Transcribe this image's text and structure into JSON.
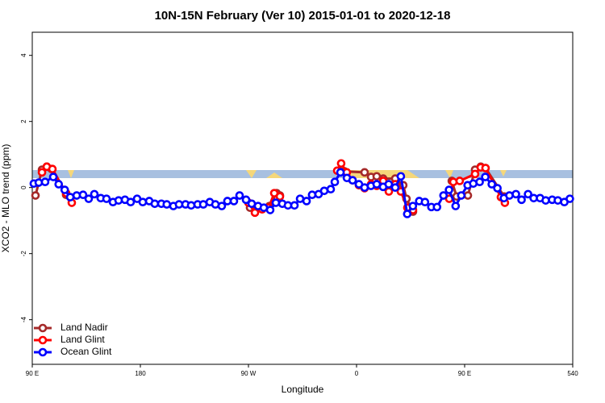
{
  "chart_data": {
    "type": "line",
    "title": "10N-15N February (Ver 10)   2015-01-01 to 2020-12-18",
    "x_label": "Longitude",
    "y_label": "XCO2 - MLO trend (ppm)",
    "xlim": [
      90,
      540
    ],
    "xticks": [
      {
        "value": 90,
        "label": "90 E"
      },
      180,
      {
        "value": 270,
        "label": "90 W"
      },
      {
        "value": 360,
        "label": "0"
      },
      {
        "value": 450,
        "label": "90 E"
      },
      540
    ],
    "ylim": [
      -5.35,
      4.7
    ],
    "yticks": [
      -4,
      -2,
      0,
      2,
      4
    ],
    "legend": "bottom-left",
    "series": [
      {
        "name": "Land Nadir",
        "color": "#a52a2a",
        "x": [
          92.7,
          98.1,
          102.1,
          106.1,
          118.2,
          null,
          271.3,
          287.4,
          293.5,
          296.2,
          null,
          345.2,
          349.9,
          366.7,
          372.1,
          376.8,
          382.2,
          392.2,
          398.9,
          401.6,
          407,
          null,
          439.3,
          443.3,
          452.7,
          458.7,
          463.4,
          467.4,
          482.9
        ],
        "values": [
          -0.24,
          0.54,
          0.63,
          0.56,
          -0.22,
          null,
          -0.61,
          -0.56,
          -0.17,
          -0.24,
          null,
          0.51,
          0.49,
          0.46,
          0.32,
          0.34,
          0.27,
          0.27,
          0.07,
          -0.34,
          -0.73,
          null,
          0.2,
          -0.27,
          -0.24,
          0.54,
          0.63,
          0.59,
          -0.27
        ]
      },
      {
        "name": "Land Glint",
        "color": "#ff0000",
        "x": [
          98.1,
          102.1,
          106.8,
          118.2,
          122.9,
          null,
          270,
          275.4,
          281.4,
          286.8,
          291.5,
          296.2,
          null,
          343.9,
          347.2,
          351.9,
          356.6,
          362,
          366.7,
          372.1,
          376.8,
          382.2,
          386.9,
          392.2,
          396.9,
          402.3,
          407,
          null,
          437.2,
          440.6,
          445.9,
          458.7,
          463.4,
          467.4,
          480.2,
          483.5
        ],
        "values": [
          0.46,
          0.63,
          0.56,
          -0.17,
          -0.46,
          null,
          -0.46,
          -0.76,
          -0.66,
          -0.61,
          -0.17,
          -0.27,
          null,
          0.51,
          0.73,
          0.46,
          0.22,
          0.07,
          -0.02,
          0.1,
          0.05,
          0.2,
          -0.12,
          0.1,
          -0.12,
          -0.61,
          -0.68,
          null,
          -0.34,
          0.17,
          0.2,
          0.41,
          0.61,
          0.59,
          -0.29,
          -0.46
        ]
      },
      {
        "name": "Ocean Glint",
        "color": "#0000ff",
        "x": [
          91.3,
          95.4,
          100.7,
          107.5,
          112,
          117,
          121.6,
          127,
          132.3,
          137,
          141.7,
          147,
          151.8,
          157.2,
          161.9,
          167.2,
          171.9,
          177.3,
          182,
          187.4,
          192,
          197.5,
          202,
          207.5,
          212.2,
          217.6,
          222.3,
          227.7,
          232.4,
          237.8,
          242.5,
          247.8,
          252.5,
          257.9,
          262.6,
          268,
          272.7,
          278,
          282.8,
          288.1,
          292.8,
          298.2,
          302.9,
          308.3,
          313,
          318.4,
          323,
          328.4,
          333.1,
          338.5,
          341.9,
          346.6,
          352,
          356.7,
          362,
          366.7,
          372,
          376.8,
          382.1,
          386.8,
          392.2,
          396.9,
          402.2,
          406.9,
          412.2,
          417,
          422.3,
          427,
          432.4,
          437,
          442.5,
          447.2,
          452.5,
          457.2,
          462.5,
          467.2,
          472.6,
          477.3,
          482.7,
          487.3,
          492.7,
          497.4,
          502.8,
          507.5,
          512.8,
          517.5,
          522.9,
          527.6,
          533,
          537.6
        ],
        "values": [
          0.12,
          0.15,
          0.17,
          0.32,
          0.1,
          -0.07,
          -0.29,
          -0.24,
          -0.22,
          -0.34,
          -0.2,
          -0.32,
          -0.34,
          -0.44,
          -0.39,
          -0.37,
          -0.44,
          -0.34,
          -0.44,
          -0.41,
          -0.49,
          -0.49,
          -0.51,
          -0.56,
          -0.51,
          -0.51,
          -0.54,
          -0.51,
          -0.51,
          -0.44,
          -0.51,
          -0.56,
          -0.41,
          -0.41,
          -0.24,
          -0.37,
          -0.49,
          -0.56,
          -0.61,
          -0.68,
          -0.46,
          -0.49,
          -0.54,
          -0.54,
          -0.34,
          -0.41,
          -0.22,
          -0.2,
          -0.1,
          -0.05,
          0.17,
          0.46,
          0.29,
          0.22,
          0.1,
          0,
          0.05,
          0.1,
          0.02,
          0.1,
          0,
          0.34,
          -0.8,
          -0.56,
          -0.41,
          -0.44,
          -0.59,
          -0.59,
          -0.24,
          -0.07,
          -0.56,
          -0.24,
          0.07,
          0.12,
          0.17,
          0.32,
          0.1,
          -0.02,
          -0.32,
          -0.24,
          -0.2,
          -0.37,
          -0.2,
          -0.32,
          -0.32,
          -0.39,
          -0.37,
          -0.39,
          -0.44,
          -0.34
        ]
      }
    ]
  }
}
